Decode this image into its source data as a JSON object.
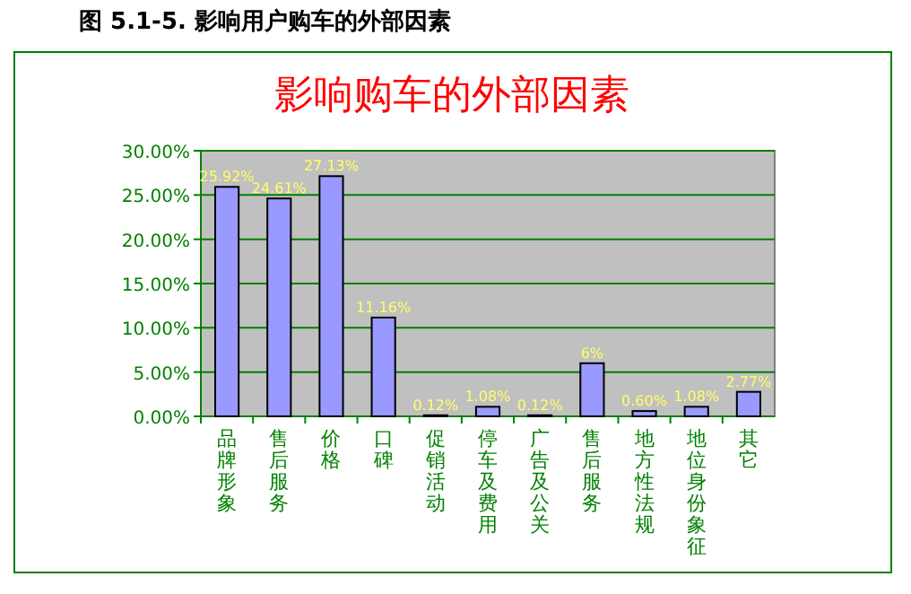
{
  "chart_data": {
    "type": "bar",
    "title": "影响购车的外部因素",
    "annotations": [
      "图 5.1-5.  影响用户购车的外部因素"
    ],
    "categories": [
      "品牌形象",
      "售后服务",
      "价格",
      "口碑",
      "促销活动",
      "停车及费用",
      "广告及公关",
      "售后服务",
      "地方性法规",
      "地位身份象征",
      "其它"
    ],
    "values": [
      25.92,
      24.61,
      27.13,
      11.16,
      0.12,
      1.08,
      0.12,
      6,
      0.6,
      1.08,
      2.77
    ],
    "value_labels": [
      "25.92%",
      "24.61%",
      "27.13%",
      "11.16%",
      "0.12%",
      "1.08%",
      "0.12%",
      "6%",
      "0.60%",
      "1.08%",
      "2.77%"
    ],
    "color": "#9999ff",
    "ylim": [
      0,
      30
    ],
    "yticks": [
      {
        "value": 0,
        "label": "0.00%"
      },
      {
        "value": 5,
        "label": "5.00%"
      },
      {
        "value": 10,
        "label": "10.00%"
      },
      {
        "value": 15,
        "label": "15.00%"
      },
      {
        "value": 20,
        "label": "20.00%"
      },
      {
        "value": 25,
        "label": "25.00%"
      },
      {
        "value": 30,
        "label": "30.00%"
      }
    ],
    "grid": "y"
  }
}
